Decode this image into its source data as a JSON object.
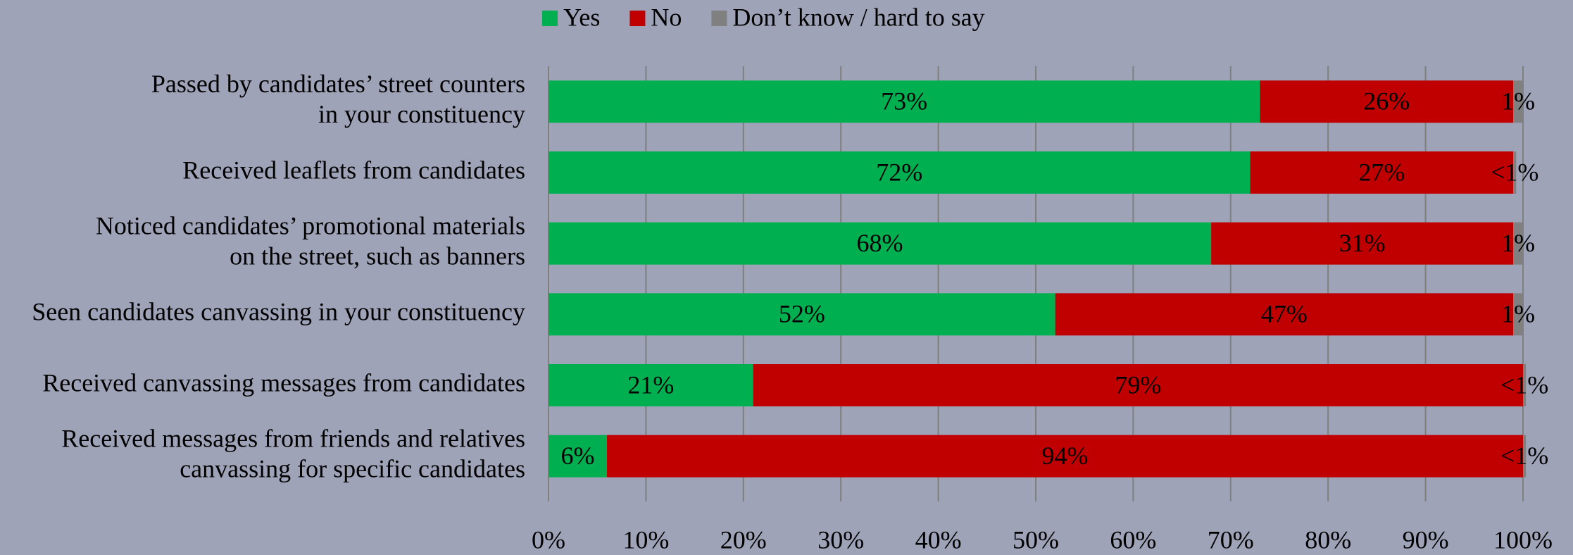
{
  "chart_data": {
    "type": "stacked-barh",
    "legend": "top",
    "grid": true,
    "categories": [
      [
        "Passed by candidates’ street counters",
        "in your constituency"
      ],
      [
        "Received leaflets from candidates"
      ],
      [
        "Noticed candidates’ promotional materials",
        "on the street, such as banners"
      ],
      [
        "Seen candidates canvassing in your constituency"
      ],
      [
        "Received canvassing messages from candidates"
      ],
      [
        "Received messages from friends and relatives",
        "canvassing for specific candidates"
      ]
    ],
    "series": [
      {
        "name": "Yes",
        "color": "#00b050",
        "values": [
          73,
          72,
          68,
          52,
          21,
          6
        ],
        "value_labels": [
          "73%",
          "72%",
          "68%",
          "52%",
          "21%",
          "6%"
        ]
      },
      {
        "name": "No",
        "color": "#c00000",
        "values": [
          26,
          27,
          31,
          47,
          79,
          94
        ],
        "value_labels": [
          "26%",
          "27%",
          "31%",
          "47%",
          "79%",
          "94%"
        ]
      },
      {
        "name": "Don’t know / hard to say",
        "color": "#808080",
        "values": [
          1,
          0.3,
          1,
          1,
          0.3,
          0.3
        ],
        "value_labels": [
          "1%",
          "<1%",
          "1%",
          "1%",
          "<1%",
          "<1%"
        ]
      }
    ],
    "xlim": [
      0,
      100
    ],
    "xticks": [
      {
        "value": 0,
        "label": "0%"
      },
      {
        "value": 10,
        "label": "10%"
      },
      {
        "value": 20,
        "label": "20%"
      },
      {
        "value": 30,
        "label": "30%"
      },
      {
        "value": 40,
        "label": "40%"
      },
      {
        "value": 50,
        "label": "50%"
      },
      {
        "value": 60,
        "label": "60%"
      },
      {
        "value": 70,
        "label": "70%"
      },
      {
        "value": 80,
        "label": "80%"
      },
      {
        "value": 90,
        "label": "90%"
      },
      {
        "value": 100,
        "label": "100%"
      }
    ]
  }
}
